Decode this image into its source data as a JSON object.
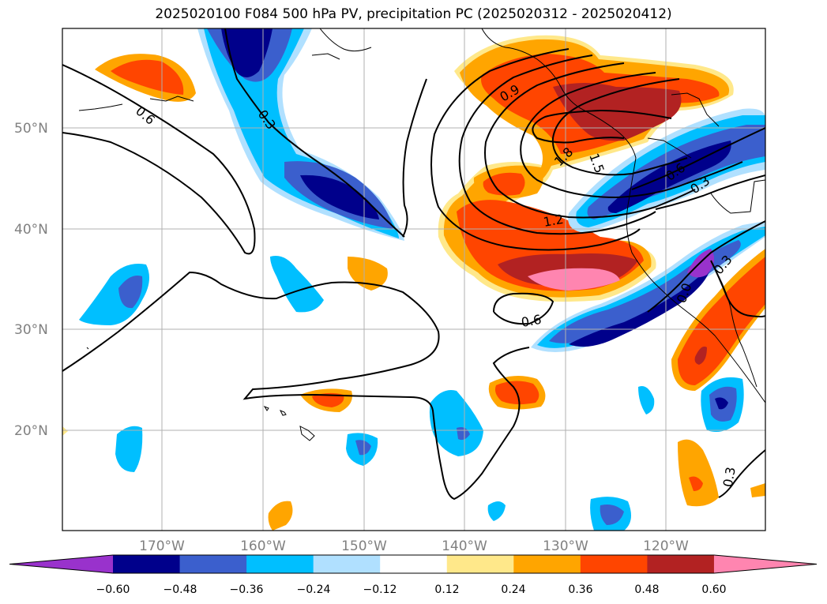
{
  "title": "2025020100 F084 500 hPa PV, precipitation PC (2025020312 - 2025020412)",
  "map": {
    "lat_labels": [
      "50°N",
      "40°N",
      "30°N",
      "20°N"
    ],
    "lon_labels": [
      "170°W",
      "160°W",
      "150°W",
      "140°W",
      "130°W",
      "120°W"
    ],
    "contour_labels": [
      "0.6",
      "0.3",
      "0.9",
      "1.8",
      "1.5",
      "1.2",
      "0.6",
      "0.3",
      "0.6",
      "0.3",
      "0.0",
      "0.3"
    ]
  },
  "colorbar": {
    "tick_labels": [
      "−0.60",
      "−0.48",
      "−0.36",
      "−0.24",
      "−0.12",
      "0.12",
      "0.24",
      "0.36",
      "0.48",
      "0.60"
    ],
    "colors": [
      "#9932cc",
      "#00008b",
      "#3b5fcd",
      "#00bfff",
      "#b0e0ff",
      "#ffffff",
      "#ffe88a",
      "#ffa500",
      "#ff4500",
      "#b22222",
      "#ff85b0"
    ]
  }
}
